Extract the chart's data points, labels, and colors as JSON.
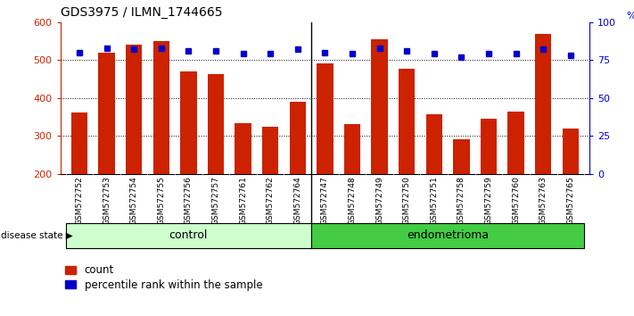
{
  "title": "GDS3975 / ILMN_1744665",
  "samples": [
    "GSM572752",
    "GSM572753",
    "GSM572754",
    "GSM572755",
    "GSM572756",
    "GSM572757",
    "GSM572761",
    "GSM572762",
    "GSM572764",
    "GSM572747",
    "GSM572748",
    "GSM572749",
    "GSM572750",
    "GSM572751",
    "GSM572758",
    "GSM572759",
    "GSM572760",
    "GSM572763",
    "GSM572765"
  ],
  "counts": [
    362,
    520,
    540,
    551,
    470,
    462,
    333,
    323,
    390,
    492,
    330,
    554,
    477,
    358,
    291,
    345,
    364,
    570,
    319
  ],
  "percentiles": [
    80,
    83,
    82,
    83,
    81,
    81,
    79,
    79,
    82,
    80,
    79,
    83,
    81,
    79,
    77,
    79,
    79,
    82,
    78
  ],
  "control_count": 9,
  "endometrioma_count": 10,
  "ylim_left": [
    200,
    600
  ],
  "ylim_right": [
    0,
    100
  ],
  "yticks_left": [
    200,
    300,
    400,
    500,
    600
  ],
  "yticks_right": [
    0,
    25,
    50,
    75,
    100
  ],
  "bar_color": "#cc2200",
  "dot_color": "#0000cc",
  "control_color": "#ccffcc",
  "endometrioma_color": "#44cc44",
  "tickbg_color": "#cccccc",
  "legend_count_label": "count",
  "legend_pct_label": "percentile rank within the sample",
  "disease_state_label": "disease state",
  "control_label": "control",
  "endometrioma_label": "endometrioma"
}
